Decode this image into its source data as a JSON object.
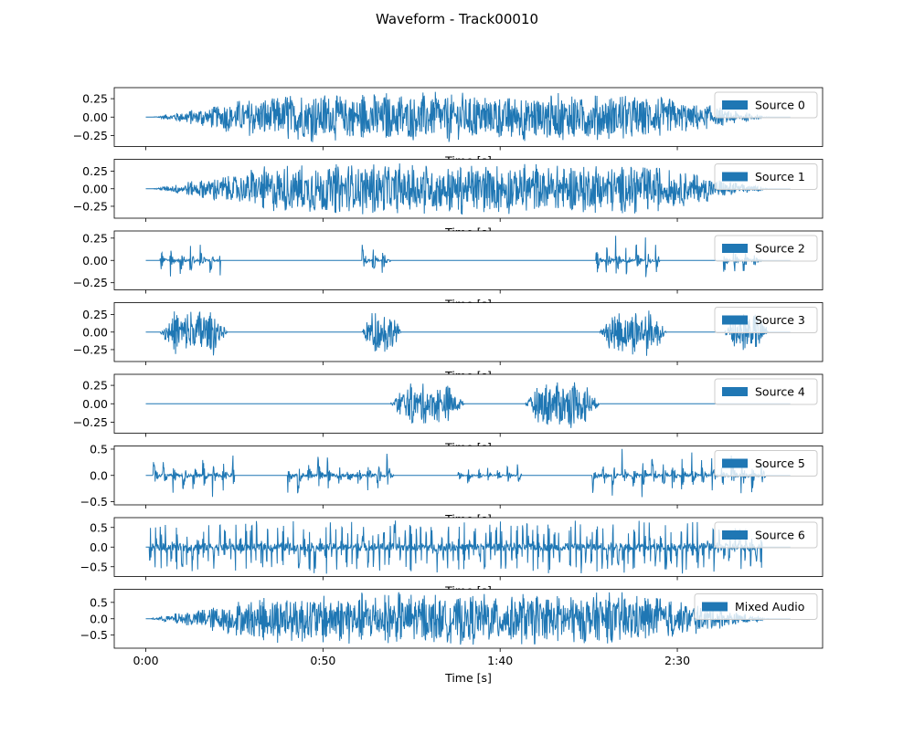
{
  "figure": {
    "title": "Waveform - Track00010",
    "series_color": "#1f77b4"
  },
  "chart_data": [
    {
      "type": "line",
      "title": "",
      "legend": "Source 0",
      "legend_position": "upper-right",
      "xlabel": "Time [s]",
      "xlim": [
        -8.9,
        191
      ],
      "ylim": [
        -0.4,
        0.4
      ],
      "yticks": [
        -0.25,
        0.0,
        0.25
      ],
      "ytick_labels": [
        "−0.25",
        "0.00",
        "0.25"
      ],
      "segments": [
        {
          "start": 2,
          "end": 176,
          "peak": 0.35
        }
      ]
    },
    {
      "type": "line",
      "title": "",
      "legend": "Source 1",
      "legend_position": "upper-right",
      "xlabel": "Time [s]",
      "xlim": [
        -8.9,
        191
      ],
      "ylim": [
        -0.42,
        0.42
      ],
      "yticks": [
        -0.25,
        0.0,
        0.25
      ],
      "ytick_labels": [
        "−0.25",
        "0.00",
        "0.25"
      ],
      "segments": [
        {
          "start": 2,
          "end": 176,
          "peak": 0.38
        }
      ]
    },
    {
      "type": "line",
      "title": "",
      "legend": "Source 2",
      "legend_position": "upper-right",
      "xlabel": "Time [s]",
      "xlim": [
        -8.9,
        191
      ],
      "ylim": [
        -0.33,
        0.33
      ],
      "yticks": [
        -0.25,
        0.0,
        0.25
      ],
      "ytick_labels": [
        "−0.25",
        "0.00",
        "0.25"
      ],
      "segments": [
        {
          "start": 4,
          "end": 21,
          "peak": 0.29,
          "burst": true
        },
        {
          "start": 61,
          "end": 69,
          "peak": 0.28,
          "burst": true
        },
        {
          "start": 127,
          "end": 145,
          "peak": 0.29,
          "burst": true
        },
        {
          "start": 163,
          "end": 174,
          "peak": 0.26,
          "burst": true
        }
      ]
    },
    {
      "type": "line",
      "title": "",
      "legend": "Source 3",
      "legend_position": "upper-right",
      "xlabel": "Time [s]",
      "xlim": [
        -8.9,
        191
      ],
      "ylim": [
        -0.42,
        0.42
      ],
      "yticks": [
        -0.25,
        0.0,
        0.25
      ],
      "ytick_labels": [
        "−0.25",
        "0.00",
        "0.25"
      ],
      "segments": [
        {
          "start": 4,
          "end": 23,
          "peak": 0.35
        },
        {
          "start": 61,
          "end": 72,
          "peak": 0.33
        },
        {
          "start": 128,
          "end": 147,
          "peak": 0.34
        },
        {
          "start": 163,
          "end": 176,
          "peak": 0.3
        }
      ]
    },
    {
      "type": "line",
      "title": "",
      "legend": "Source 4",
      "legend_position": "upper-right",
      "xlabel": "Time [s]",
      "xlim": [
        -8.9,
        191
      ],
      "ylim": [
        -0.4,
        0.4
      ],
      "yticks": [
        -0.25,
        0.0,
        0.25
      ],
      "ytick_labels": [
        "−0.25",
        "0.00",
        "0.25"
      ],
      "segments": [
        {
          "start": 69,
          "end": 90,
          "peak": 0.28
        },
        {
          "start": 107,
          "end": 128,
          "peak": 0.35
        }
      ]
    },
    {
      "type": "line",
      "title": "",
      "legend": "Source 5",
      "legend_position": "upper-right",
      "xlabel": "Time [s]",
      "xlim": [
        -8.9,
        191
      ],
      "ylim": [
        -0.56,
        0.56
      ],
      "yticks": [
        -0.5,
        0.0,
        0.5
      ],
      "ytick_labels": [
        "−0.5",
        "0.0",
        "0.5"
      ],
      "segments": [
        {
          "start": 2,
          "end": 25,
          "peak": 0.52,
          "burst": true
        },
        {
          "start": 40,
          "end": 70,
          "peak": 0.52,
          "burst": true
        },
        {
          "start": 88,
          "end": 106,
          "peak": 0.25,
          "burst": true
        },
        {
          "start": 126,
          "end": 175,
          "peak": 0.52,
          "burst": true
        }
      ]
    },
    {
      "type": "line",
      "title": "",
      "legend": "Source 6",
      "legend_position": "upper-right",
      "xlabel": "Time [s]",
      "xlim": [
        -8.9,
        191
      ],
      "ylim": [
        -0.75,
        0.75
      ],
      "yticks": [
        -0.5,
        0.0,
        0.5
      ],
      "ytick_labels": [
        "−0.5",
        "0.0",
        "0.5"
      ],
      "segments": [
        {
          "start": 1,
          "end": 174,
          "peak": 0.68,
          "pulse": true
        }
      ]
    },
    {
      "type": "line",
      "title": "",
      "legend": "Mixed Audio",
      "legend_position": "upper-right",
      "xlabel": "Time [s]",
      "xlim": [
        -8.9,
        191
      ],
      "ylim": [
        -0.9,
        0.9
      ],
      "yticks": [
        -0.5,
        0.0,
        0.5
      ],
      "ytick_labels": [
        "−0.5",
        "0.0",
        "0.5"
      ],
      "xticks": [
        0,
        50,
        100,
        150
      ],
      "xtick_labels": [
        "0:00",
        "0:50",
        "1:40",
        "2:30"
      ],
      "segments": [
        {
          "start": 1,
          "end": 176,
          "peak": 0.82
        }
      ]
    }
  ]
}
